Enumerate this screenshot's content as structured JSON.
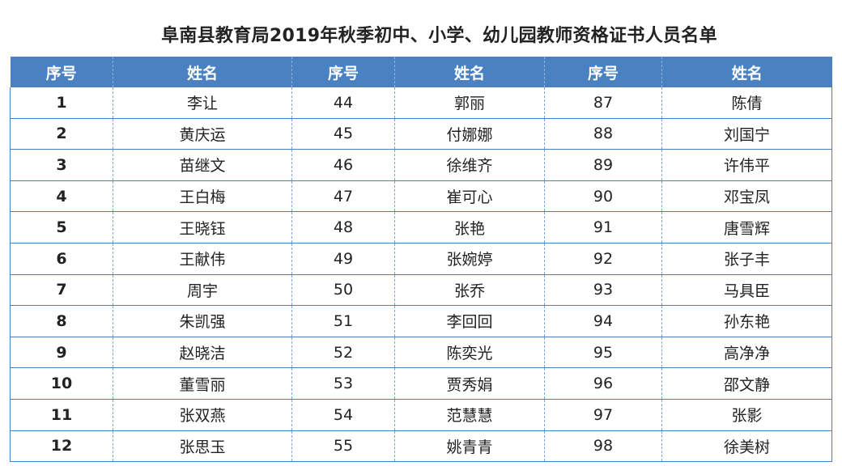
{
  "title": "阜南县教育局2019年秋季初中、小学、幼儿园教师资格证书人员名单",
  "header": {
    "col1": "序号",
    "col2": "姓名",
    "col3": "序号",
    "col4": "姓名",
    "col5": "序号",
    "col6": "姓名"
  },
  "rows": [
    {
      "n1": "1",
      "name1": "李让",
      "n2": "44",
      "name2": "郭丽",
      "n3": "87",
      "name3": "陈倩"
    },
    {
      "n1": "2",
      "name1": "黄庆运",
      "n2": "45",
      "name2": "付娜娜",
      "n3": "88",
      "name3": "刘国宁"
    },
    {
      "n1": "3",
      "name1": "苗继文",
      "n2": "46",
      "name2": "徐维齐",
      "n3": "89",
      "name3": "许伟平"
    },
    {
      "n1": "4",
      "name1": "王白梅",
      "n2": "47",
      "name2": "崔可心",
      "n3": "90",
      "name3": "邓宝凤"
    },
    {
      "n1": "5",
      "name1": "王晓钰",
      "n2": "48",
      "name2": "张艳",
      "n3": "91",
      "name3": "唐雪辉"
    },
    {
      "n1": "6",
      "name1": "王献伟",
      "n2": "49",
      "name2": "张婉婷",
      "n3": "92",
      "name3": "张子丰"
    },
    {
      "n1": "7",
      "name1": "周宇",
      "n2": "50",
      "name2": "张乔",
      "n3": "93",
      "name3": "马具臣"
    },
    {
      "n1": "8",
      "name1": "朱凯强",
      "n2": "51",
      "name2": "李回回",
      "n3": "94",
      "name3": "孙东艳"
    },
    {
      "n1": "9",
      "name1": "赵晓洁",
      "n2": "52",
      "name2": "陈奕光",
      "n3": "95",
      "name3": "高净净"
    },
    {
      "n1": "10",
      "name1": "董雪丽",
      "n2": "53",
      "name2": "贾秀娟",
      "n3": "96",
      "name3": "邵文静"
    },
    {
      "n1": "11",
      "name1": "张双燕",
      "n2": "54",
      "name2": "范慧慧",
      "n3": "97",
      "name3": "张影"
    },
    {
      "n1": "12",
      "name1": "张思玉",
      "n2": "55",
      "name2": "姚青青",
      "n3": "98",
      "name3": "徐美树"
    }
  ]
}
